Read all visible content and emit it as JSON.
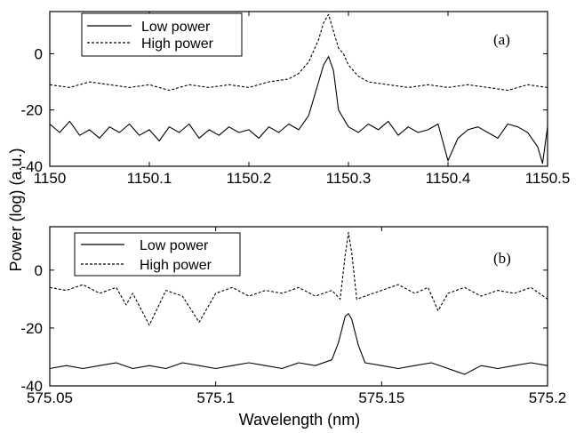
{
  "chart_data": [
    {
      "type": "line",
      "panel_label": "(a)",
      "xlim": [
        1150,
        1150.5
      ],
      "ylim": [
        -40,
        15
      ],
      "xticks": [
        1150,
        1150.1,
        1150.2,
        1150.3,
        1150.4,
        1150.5
      ],
      "xtick_labels": [
        "1150",
        "1150.1",
        "1150.2",
        "1150.3",
        "1150.4",
        "1150.5"
      ],
      "yticks": [
        -40,
        -20,
        0
      ],
      "ytick_labels": [
        "-40",
        "-20",
        "0"
      ],
      "legend_position": "top-left",
      "grid": false,
      "series": [
        {
          "name": "Low power",
          "style": "solid",
          "x": [
            1150.0,
            1150.01,
            1150.02,
            1150.03,
            1150.04,
            1150.05,
            1150.06,
            1150.07,
            1150.08,
            1150.09,
            1150.1,
            1150.11,
            1150.12,
            1150.13,
            1150.14,
            1150.15,
            1150.16,
            1150.17,
            1150.18,
            1150.19,
            1150.2,
            1150.21,
            1150.22,
            1150.23,
            1150.24,
            1150.25,
            1150.26,
            1150.27,
            1150.275,
            1150.28,
            1150.285,
            1150.29,
            1150.3,
            1150.31,
            1150.32,
            1150.33,
            1150.34,
            1150.35,
            1150.36,
            1150.37,
            1150.38,
            1150.39,
            1150.4,
            1150.41,
            1150.42,
            1150.43,
            1150.44,
            1150.45,
            1150.46,
            1150.47,
            1150.48,
            1150.49,
            1150.495,
            1150.5
          ],
          "y": [
            -25,
            -28,
            -24,
            -29,
            -27,
            -30,
            -26,
            -28,
            -25,
            -29,
            -27,
            -31,
            -26,
            -28,
            -25,
            -30,
            -27,
            -29,
            -26,
            -28,
            -27,
            -30,
            -26,
            -28,
            -25,
            -27,
            -22,
            -10,
            -4,
            -1,
            -6,
            -20,
            -26,
            -28,
            -25,
            -27,
            -24,
            -29,
            -26,
            -28,
            -27,
            -25,
            -38,
            -30,
            -27,
            -26,
            -28,
            -30,
            -25,
            -26,
            -28,
            -33,
            -39,
            -26
          ]
        },
        {
          "name": "High power",
          "style": "dashed",
          "x": [
            1150.0,
            1150.02,
            1150.04,
            1150.06,
            1150.08,
            1150.1,
            1150.12,
            1150.14,
            1150.16,
            1150.18,
            1150.2,
            1150.22,
            1150.24,
            1150.25,
            1150.26,
            1150.27,
            1150.275,
            1150.28,
            1150.285,
            1150.29,
            1150.295,
            1150.3,
            1150.31,
            1150.32,
            1150.34,
            1150.36,
            1150.38,
            1150.4,
            1150.42,
            1150.44,
            1150.46,
            1150.48,
            1150.5
          ],
          "y": [
            -11,
            -12,
            -10,
            -11,
            -12,
            -11,
            -13,
            -11,
            -12,
            -11,
            -12,
            -10,
            -9,
            -7,
            -3,
            5,
            11,
            14,
            8,
            2,
            0,
            -4,
            -8,
            -10,
            -11,
            -12,
            -11,
            -12,
            -11,
            -12,
            -13,
            -11,
            -12
          ]
        }
      ]
    },
    {
      "type": "line",
      "panel_label": "(b)",
      "xlim": [
        575.05,
        575.2
      ],
      "ylim": [
        -40,
        15
      ],
      "xticks": [
        575.05,
        575.1,
        575.15,
        575.2
      ],
      "xtick_labels": [
        "575.05",
        "575.1",
        "575.15",
        "575.2"
      ],
      "yticks": [
        -40,
        -20,
        0
      ],
      "ytick_labels": [
        "-40",
        "-20",
        "0"
      ],
      "legend_position": "top-left",
      "grid": false,
      "series": [
        {
          "name": "Low power",
          "style": "solid",
          "x": [
            575.05,
            575.055,
            575.06,
            575.065,
            575.07,
            575.075,
            575.08,
            575.085,
            575.09,
            575.095,
            575.1,
            575.105,
            575.11,
            575.115,
            575.12,
            575.125,
            575.13,
            575.135,
            575.137,
            575.139,
            575.14,
            575.141,
            575.143,
            575.145,
            575.15,
            575.155,
            575.16,
            575.165,
            575.17,
            575.175,
            575.18,
            575.185,
            575.19,
            575.195,
            575.2
          ],
          "y": [
            -34,
            -33,
            -34,
            -33,
            -32,
            -34,
            -33,
            -34,
            -32,
            -33,
            -34,
            -33,
            -32,
            -33,
            -34,
            -32,
            -33,
            -31,
            -25,
            -16,
            -15,
            -17,
            -26,
            -32,
            -33,
            -34,
            -33,
            -32,
            -34,
            -36,
            -33,
            -34,
            -33,
            -32,
            -33
          ]
        },
        {
          "name": "High power",
          "style": "dashed",
          "x": [
            575.05,
            575.055,
            575.06,
            575.065,
            575.07,
            575.073,
            575.075,
            575.08,
            575.085,
            575.09,
            575.095,
            575.1,
            575.105,
            575.11,
            575.115,
            575.12,
            575.125,
            575.13,
            575.135,
            575.1375,
            575.139,
            575.14,
            575.141,
            575.1425,
            575.145,
            575.15,
            575.155,
            575.16,
            575.164,
            575.167,
            575.17,
            575.175,
            575.18,
            575.185,
            575.19,
            575.195,
            575.2
          ],
          "y": [
            -6,
            -7,
            -5,
            -8,
            -6,
            -12,
            -8,
            -19,
            -7,
            -9,
            -18,
            -8,
            -6,
            -9,
            -7,
            -8,
            -6,
            -9,
            -7,
            -10,
            5,
            13,
            6,
            -10,
            -9,
            -7,
            -5,
            -8,
            -6,
            -14,
            -8,
            -6,
            -9,
            -7,
            -8,
            -6,
            -10
          ]
        }
      ]
    }
  ],
  "shared_axes": {
    "ylabel": "Power (log) (a.u.)",
    "xlabel": "Wavelength (nm)"
  }
}
